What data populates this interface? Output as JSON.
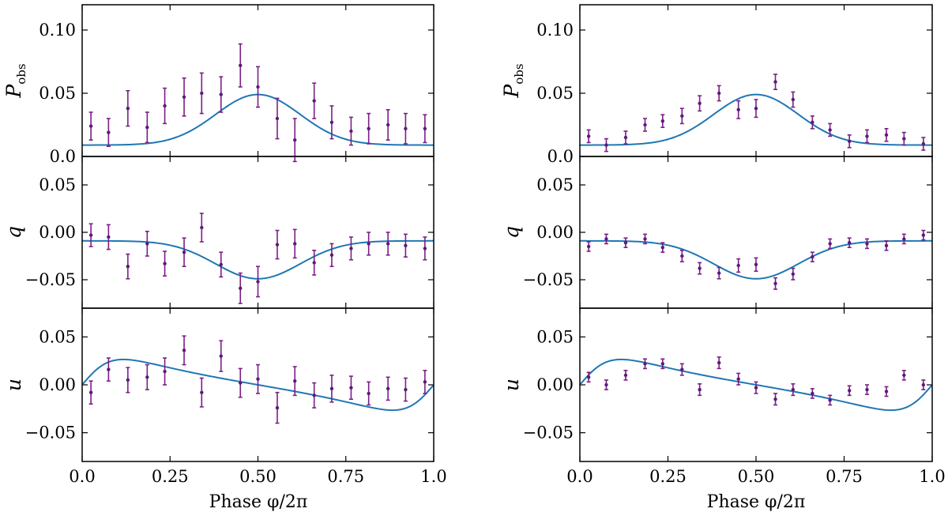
{
  "figure": {
    "xlabel": "Phase φ/2π"
  },
  "chart_data": [
    {
      "type": "scatter",
      "panel": "left-top",
      "ylabel": "P",
      "ylabel_sub": "obs",
      "xlim": [
        0,
        1
      ],
      "ylim": [
        0,
        0.12
      ],
      "yticks": [
        0.0,
        0.05,
        0.1
      ],
      "ytick_labels": [
        "0.0",
        "0.05",
        "0.10"
      ],
      "xticks": [
        0,
        0.25,
        0.5,
        0.75,
        1.0
      ],
      "xtick_labels": [],
      "model": {
        "kind": "P",
        "color": "#1f77b4"
      },
      "x": [
        0.025,
        0.075,
        0.13,
        0.185,
        0.235,
        0.29,
        0.34,
        0.395,
        0.45,
        0.5,
        0.555,
        0.605,
        0.66,
        0.71,
        0.765,
        0.815,
        0.87,
        0.92,
        0.975
      ],
      "y": [
        0.024,
        0.019,
        0.038,
        0.023,
        0.04,
        0.047,
        0.05,
        0.049,
        0.072,
        0.055,
        0.03,
        0.013,
        0.044,
        0.027,
        0.02,
        0.022,
        0.025,
        0.022,
        0.022
      ],
      "err": [
        0.011,
        0.011,
        0.014,
        0.012,
        0.014,
        0.015,
        0.016,
        0.014,
        0.017,
        0.016,
        0.016,
        0.017,
        0.014,
        0.013,
        0.011,
        0.012,
        0.012,
        0.012,
        0.011
      ]
    },
    {
      "type": "scatter",
      "panel": "left-middle",
      "ylabel": "q",
      "xlim": [
        0,
        1
      ],
      "ylim": [
        -0.08,
        0.08
      ],
      "yticks": [
        -0.05,
        0.0,
        0.05
      ],
      "ytick_labels": [
        "−0.05",
        "0.00",
        "0.05"
      ],
      "xticks": [
        0,
        0.25,
        0.5,
        0.75,
        1.0
      ],
      "xtick_labels": [],
      "model": {
        "kind": "q",
        "color": "#1f77b4"
      },
      "x": [
        0.025,
        0.075,
        0.13,
        0.185,
        0.235,
        0.29,
        0.34,
        0.395,
        0.45,
        0.5,
        0.555,
        0.605,
        0.66,
        0.71,
        0.765,
        0.815,
        0.87,
        0.92,
        0.975
      ],
      "y": [
        -0.003,
        -0.005,
        -0.036,
        -0.012,
        -0.033,
        -0.021,
        0.005,
        -0.034,
        -0.059,
        -0.052,
        -0.013,
        -0.012,
        -0.032,
        -0.024,
        -0.017,
        -0.012,
        -0.012,
        -0.014,
        -0.017
      ],
      "err": [
        0.012,
        0.013,
        0.013,
        0.013,
        0.013,
        0.015,
        0.015,
        0.013,
        0.016,
        0.016,
        0.015,
        0.015,
        0.013,
        0.012,
        0.012,
        0.012,
        0.012,
        0.012,
        0.012
      ]
    },
    {
      "type": "scatter",
      "panel": "left-bottom",
      "ylabel": "u",
      "xlim": [
        0,
        1
      ],
      "ylim": [
        -0.08,
        0.08
      ],
      "yticks": [
        -0.05,
        0.0,
        0.05
      ],
      "ytick_labels": [
        "−0.05",
        "0.00",
        "0.05"
      ],
      "xticks": [
        0,
        0.25,
        0.5,
        0.75,
        1.0
      ],
      "xtick_labels": [
        "0.0",
        "0.25",
        "0.50",
        "0.75",
        "1.0"
      ],
      "model": {
        "kind": "u",
        "color": "#1f77b4"
      },
      "x": [
        0.025,
        0.075,
        0.13,
        0.185,
        0.235,
        0.29,
        0.34,
        0.395,
        0.45,
        0.5,
        0.555,
        0.605,
        0.66,
        0.71,
        0.765,
        0.815,
        0.87,
        0.92,
        0.975
      ],
      "y": [
        -0.008,
        0.016,
        0.005,
        0.008,
        0.014,
        0.036,
        -0.008,
        0.03,
        0.002,
        0.006,
        -0.024,
        0.004,
        -0.011,
        -0.004,
        -0.003,
        -0.009,
        -0.004,
        -0.005,
        0.003
      ],
      "err": [
        0.012,
        0.012,
        0.013,
        0.013,
        0.014,
        0.015,
        0.015,
        0.016,
        0.015,
        0.015,
        0.016,
        0.015,
        0.013,
        0.014,
        0.012,
        0.012,
        0.012,
        0.012,
        0.012
      ]
    },
    {
      "type": "scatter",
      "panel": "right-top",
      "ylabel": "P",
      "ylabel_sub": "obs",
      "xlim": [
        0,
        1
      ],
      "ylim": [
        0,
        0.12
      ],
      "yticks": [
        0.0,
        0.05,
        0.1
      ],
      "ytick_labels": [
        "0.0",
        "0.05",
        "0.10"
      ],
      "xticks": [
        0,
        0.25,
        0.5,
        0.75,
        1.0
      ],
      "xtick_labels": [],
      "model": {
        "kind": "P",
        "color": "#1f77b4"
      },
      "x": [
        0.025,
        0.075,
        0.13,
        0.185,
        0.235,
        0.29,
        0.34,
        0.395,
        0.45,
        0.5,
        0.555,
        0.605,
        0.66,
        0.71,
        0.765,
        0.815,
        0.87,
        0.92,
        0.975
      ],
      "y": [
        0.016,
        0.009,
        0.015,
        0.025,
        0.028,
        0.032,
        0.042,
        0.05,
        0.037,
        0.038,
        0.059,
        0.045,
        0.027,
        0.021,
        0.012,
        0.016,
        0.017,
        0.014,
        0.01
      ],
      "err": [
        0.005,
        0.005,
        0.005,
        0.005,
        0.005,
        0.006,
        0.006,
        0.006,
        0.007,
        0.007,
        0.006,
        0.006,
        0.005,
        0.005,
        0.005,
        0.005,
        0.005,
        0.005,
        0.005
      ]
    },
    {
      "type": "scatter",
      "panel": "right-middle",
      "ylabel": "q",
      "xlim": [
        0,
        1
      ],
      "ylim": [
        -0.08,
        0.08
      ],
      "yticks": [
        -0.05,
        0.0,
        0.05
      ],
      "ytick_labels": [
        "−0.05",
        "0.00",
        "0.05"
      ],
      "xticks": [
        0,
        0.25,
        0.5,
        0.75,
        1.0
      ],
      "xtick_labels": [],
      "model": {
        "kind": "q",
        "color": "#1f77b4"
      },
      "x": [
        0.025,
        0.075,
        0.13,
        0.185,
        0.235,
        0.29,
        0.34,
        0.395,
        0.45,
        0.5,
        0.555,
        0.605,
        0.66,
        0.71,
        0.765,
        0.815,
        0.87,
        0.92,
        0.975
      ],
      "y": [
        -0.015,
        -0.007,
        -0.011,
        -0.007,
        -0.016,
        -0.025,
        -0.038,
        -0.043,
        -0.035,
        -0.034,
        -0.054,
        -0.044,
        -0.026,
        -0.012,
        -0.011,
        -0.012,
        -0.014,
        -0.007,
        -0.003
      ],
      "err": [
        0.005,
        0.005,
        0.005,
        0.005,
        0.005,
        0.006,
        0.006,
        0.006,
        0.007,
        0.007,
        0.006,
        0.006,
        0.005,
        0.005,
        0.005,
        0.005,
        0.005,
        0.005,
        0.005
      ]
    },
    {
      "type": "scatter",
      "panel": "right-bottom",
      "ylabel": "u",
      "xlim": [
        0,
        1
      ],
      "ylim": [
        -0.08,
        0.08
      ],
      "yticks": [
        -0.05,
        0.0,
        0.05
      ],
      "ytick_labels": [
        "−0.05",
        "0.00",
        "0.05"
      ],
      "xticks": [
        0,
        0.25,
        0.5,
        0.75,
        1.0
      ],
      "xtick_labels": [
        "0.0",
        "0.25",
        "0.50",
        "0.75",
        "1.0"
      ],
      "model": {
        "kind": "u",
        "color": "#1f77b4"
      },
      "x": [
        0.025,
        0.075,
        0.13,
        0.185,
        0.235,
        0.29,
        0.34,
        0.395,
        0.45,
        0.5,
        0.555,
        0.605,
        0.66,
        0.71,
        0.765,
        0.815,
        0.87,
        0.92,
        0.975
      ],
      "y": [
        0.008,
        0.0,
        0.01,
        0.022,
        0.022,
        0.016,
        -0.005,
        0.023,
        0.006,
        -0.003,
        -0.015,
        -0.005,
        -0.009,
        -0.016,
        -0.006,
        -0.005,
        -0.007,
        0.01,
        0.0
      ],
      "err": [
        0.005,
        0.005,
        0.005,
        0.005,
        0.005,
        0.006,
        0.006,
        0.006,
        0.006,
        0.006,
        0.006,
        0.006,
        0.005,
        0.005,
        0.005,
        0.005,
        0.005,
        0.005,
        0.005
      ]
    }
  ]
}
